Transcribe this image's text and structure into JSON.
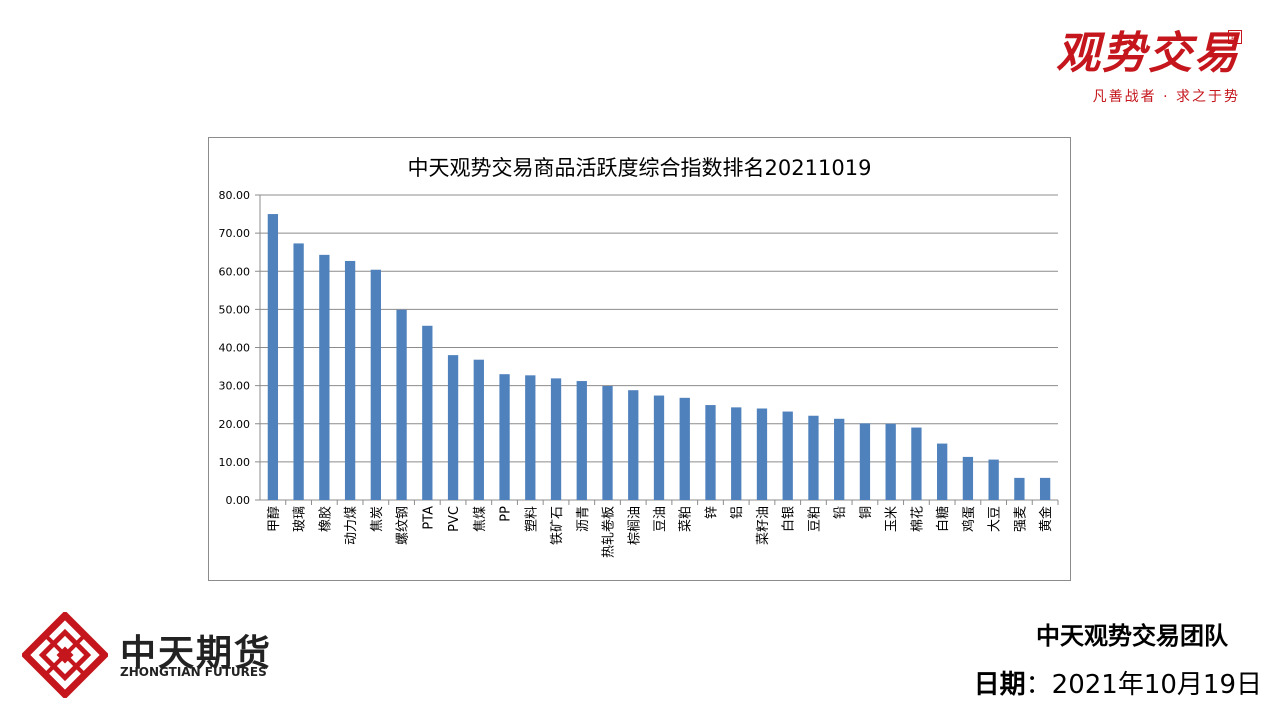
{
  "brand": {
    "logo_text": "观势交易",
    "slogan": "凡善战者 · 求之于势",
    "seal": "印"
  },
  "footer": {
    "company_name_cn": "中天期货",
    "company_name_en": "ZHONGTIAN FUTURES",
    "team": "中天观势交易团队",
    "date_label": "日期",
    "date_value": "：2021年10月19日"
  },
  "colors": {
    "bar": "#4f81bd",
    "brand_red": "#c4161c",
    "grid": "#8c8c8c"
  },
  "chart_data": {
    "type": "bar",
    "title": "中天观势交易商品活跃度综合指数排名20211019",
    "xlabel": "",
    "ylabel": "",
    "ylim": [
      0,
      80
    ],
    "yticks": [
      "0.00",
      "10.00",
      "20.00",
      "30.00",
      "40.00",
      "50.00",
      "60.00",
      "70.00",
      "80.00"
    ],
    "grid": true,
    "legend": "none",
    "categories": [
      "甲醇",
      "玻璃",
      "橡胶",
      "动力煤",
      "焦炭",
      "螺纹钢",
      "PTA",
      "PVC",
      "焦煤",
      "PP",
      "塑料",
      "铁矿石",
      "沥青",
      "热轧卷板",
      "棕榈油",
      "豆油",
      "菜粕",
      "锌",
      "铝",
      "菜籽油",
      "白银",
      "豆粕",
      "铅",
      "铜",
      "玉米",
      "棉花",
      "白糖",
      "鸡蛋",
      "大豆",
      "强麦",
      "黄金"
    ],
    "values": [
      75.0,
      67.3,
      64.3,
      62.7,
      60.4,
      49.9,
      45.7,
      38.0,
      36.8,
      33.0,
      32.7,
      31.9,
      31.2,
      29.9,
      28.8,
      27.4,
      26.8,
      24.9,
      24.3,
      24.0,
      23.2,
      22.1,
      21.3,
      20.1,
      20.0,
      19.0,
      14.8,
      11.3,
      10.6,
      5.8,
      5.8
    ]
  }
}
